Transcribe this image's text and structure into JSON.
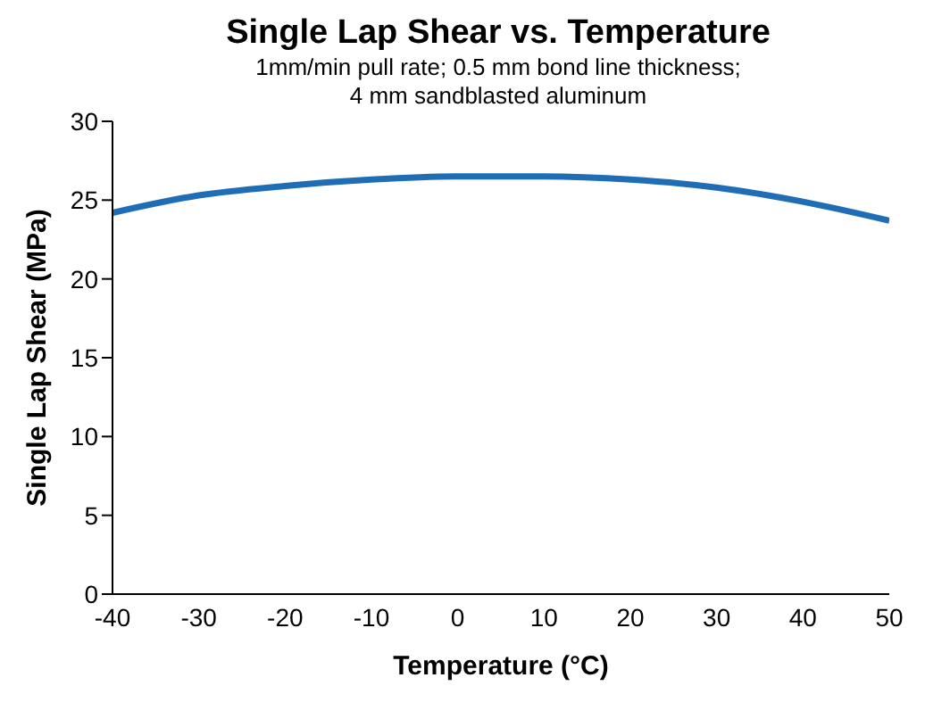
{
  "chart_data": {
    "type": "line",
    "title": "Single Lap Shear vs. Temperature",
    "subtitle": "1mm/min pull rate; 0.5 mm bond line thickness;\n4 mm sandblasted aluminum",
    "xlabel": "Temperature (°C)",
    "ylabel": "Single Lap Shear (MPa)",
    "x": [
      -40,
      -30,
      -20,
      -10,
      0,
      10,
      20,
      30,
      40,
      50
    ],
    "series": [
      {
        "color": "#1f6db5",
        "values": [
          24.2,
          25.3,
          25.9,
          26.3,
          26.5,
          26.5,
          26.3,
          25.8,
          24.9,
          23.7
        ]
      }
    ],
    "xlim": [
      -40,
      50
    ],
    "xticks": [
      -40,
      -30,
      -20,
      -10,
      0,
      10,
      20,
      30,
      40,
      50
    ],
    "ylim": [
      0,
      30
    ],
    "yticks": [
      0,
      5,
      10,
      15,
      20,
      25,
      30
    ],
    "grid": false,
    "legend": false,
    "marker": "none",
    "line_style": "solid"
  }
}
